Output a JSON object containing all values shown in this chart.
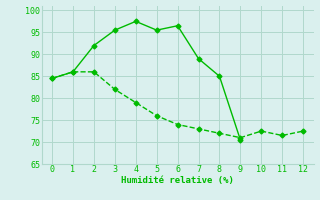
{
  "line1_x": [
    0,
    1,
    2,
    3,
    4,
    5,
    6,
    7,
    8,
    9
  ],
  "line1_y": [
    84.5,
    86,
    92,
    95.5,
    97.5,
    95.5,
    96.5,
    89,
    85,
    70.5
  ],
  "line2_x": [
    0,
    1,
    2,
    3,
    4,
    5,
    6,
    7,
    8,
    9,
    10,
    11,
    12
  ],
  "line2_y": [
    84.5,
    86,
    86,
    82,
    79,
    76,
    74,
    73,
    72,
    71,
    72.5,
    71.5,
    72.5
  ],
  "line_color": "#00bb00",
  "bg_color": "#daf0ee",
  "grid_color": "#b0d8cc",
  "xlabel": "Humidité relative (%)",
  "xlim": [
    -0.5,
    12.5
  ],
  "ylim": [
    65,
    101
  ],
  "yticks": [
    65,
    70,
    75,
    80,
    85,
    90,
    95,
    100
  ],
  "xticks": [
    0,
    1,
    2,
    3,
    4,
    5,
    6,
    7,
    8,
    9,
    10,
    11,
    12
  ],
  "xlabel_color": "#00bb00",
  "tick_color": "#00bb00",
  "markersize": 2.5,
  "linewidth": 1.0
}
